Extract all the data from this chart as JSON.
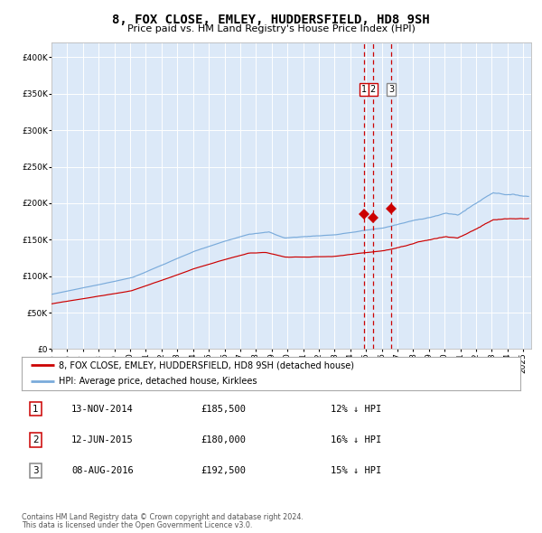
{
  "title": "8, FOX CLOSE, EMLEY, HUDDERSFIELD, HD8 9SH",
  "subtitle": "Price paid vs. HM Land Registry's House Price Index (HPI)",
  "legend_line1": "8, FOX CLOSE, EMLEY, HUDDERSFIELD, HD8 9SH (detached house)",
  "legend_line2": "HPI: Average price, detached house, Kirklees",
  "footer1": "Contains HM Land Registry data © Crown copyright and database right 2024.",
  "footer2": "This data is licensed under the Open Government Licence v3.0.",
  "transactions": [
    {
      "num": 1,
      "date": "13-NOV-2014",
      "price": 185500,
      "pct": "12%",
      "dir": "↓"
    },
    {
      "num": 2,
      "date": "12-JUN-2015",
      "price": 180000,
      "pct": "16%",
      "dir": "↓"
    },
    {
      "num": 3,
      "date": "08-AUG-2016",
      "price": 192500,
      "pct": "15%",
      "dir": "↓"
    }
  ],
  "transaction_dates_decimal": [
    2014.87,
    2015.44,
    2016.6
  ],
  "transaction_prices": [
    185500,
    180000,
    192500
  ],
  "vline1_date": 2014.87,
  "vline2_date": 2015.44,
  "vline3_date": 2016.6,
  "ylim": [
    0,
    420000
  ],
  "xlim_start": 1995.0,
  "xlim_end": 2025.5,
  "background_color": "#dce9f8",
  "plot_bg_color": "#dce9f8",
  "grid_color": "#ffffff",
  "red_line_color": "#cc0000",
  "blue_line_color": "#7aabdb",
  "marker_color": "#cc0000",
  "vline_red_color": "#cc0000",
  "vline_gray_color": "#cc0000",
  "title_fontsize": 10,
  "subtitle_fontsize": 8
}
